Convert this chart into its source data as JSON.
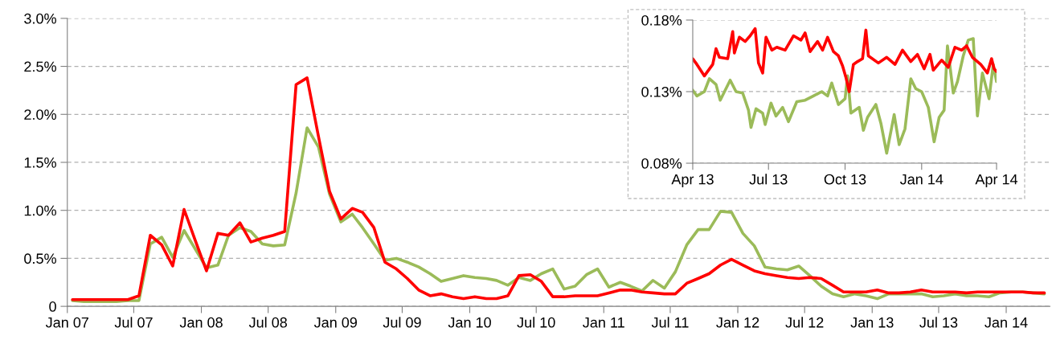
{
  "chart_data": [
    {
      "type": "line",
      "grid": "y",
      "x": [
        "2007-01-15",
        "2007-02-15",
        "2007-03-15",
        "2007-04-15",
        "2007-05-15",
        "2007-06-15",
        "2007-07-15",
        "2007-08-15",
        "2007-09-15",
        "2007-10-15",
        "2007-11-15",
        "2007-12-15",
        "2008-01-15",
        "2008-02-15",
        "2008-03-15",
        "2008-04-15",
        "2008-05-15",
        "2008-06-15",
        "2008-07-15",
        "2008-08-15",
        "2008-09-15",
        "2008-10-15",
        "2008-11-15",
        "2008-12-15",
        "2009-01-15",
        "2009-02-15",
        "2009-03-15",
        "2009-04-15",
        "2009-05-15",
        "2009-06-15",
        "2009-07-15",
        "2009-08-15",
        "2009-09-15",
        "2009-10-15",
        "2009-11-15",
        "2009-12-15",
        "2010-01-15",
        "2010-02-15",
        "2010-03-15",
        "2010-04-15",
        "2010-05-15",
        "2010-06-15",
        "2010-07-15",
        "2010-08-15",
        "2010-09-15",
        "2010-10-15",
        "2010-11-15",
        "2010-12-15",
        "2011-01-15",
        "2011-02-15",
        "2011-03-15",
        "2011-04-15",
        "2011-05-15",
        "2011-06-15",
        "2011-07-15",
        "2011-08-15",
        "2011-09-15",
        "2011-10-15",
        "2011-11-15",
        "2011-12-15",
        "2012-01-15",
        "2012-02-15",
        "2012-03-15",
        "2012-04-15",
        "2012-05-15",
        "2012-06-15",
        "2012-07-15",
        "2012-08-15",
        "2012-09-15",
        "2012-10-15",
        "2012-11-15",
        "2012-12-15",
        "2013-01-15",
        "2013-02-15",
        "2013-03-15",
        "2013-04-15",
        "2013-05-15",
        "2013-06-15",
        "2013-07-15",
        "2013-08-15",
        "2013-09-15",
        "2013-10-15",
        "2013-11-15",
        "2013-12-15",
        "2014-01-15",
        "2014-02-15",
        "2014-03-15",
        "2014-04-15"
      ],
      "series": [
        {
          "color": "#9bbb59",
          "values": [
            0.06,
            0.05,
            0.05,
            0.05,
            0.05,
            0.06,
            0.06,
            0.65,
            0.72,
            0.51,
            0.79,
            0.6,
            0.4,
            0.43,
            0.74,
            0.82,
            0.78,
            0.65,
            0.63,
            0.64,
            1.18,
            1.86,
            1.66,
            1.17,
            0.88,
            0.96,
            0.82,
            0.65,
            0.48,
            0.5,
            0.46,
            0.41,
            0.34,
            0.26,
            0.29,
            0.32,
            0.3,
            0.29,
            0.27,
            0.22,
            0.3,
            0.27,
            0.34,
            0.39,
            0.18,
            0.21,
            0.33,
            0.39,
            0.2,
            0.25,
            0.21,
            0.16,
            0.27,
            0.19,
            0.36,
            0.64,
            0.8,
            0.8,
            0.99,
            0.98,
            0.76,
            0.63,
            0.41,
            0.39,
            0.38,
            0.42,
            0.32,
            0.21,
            0.13,
            0.1,
            0.13,
            0.11,
            0.08,
            0.13,
            0.13,
            0.13,
            0.13,
            0.1,
            0.11,
            0.13,
            0.11,
            0.11,
            0.1,
            0.14,
            0.15,
            0.15,
            0.14,
            0.13
          ]
        },
        {
          "color": "#ff0000",
          "values": [
            0.07,
            0.07,
            0.07,
            0.07,
            0.07,
            0.07,
            0.11,
            0.74,
            0.64,
            0.42,
            1.01,
            0.69,
            0.37,
            0.76,
            0.74,
            0.87,
            0.67,
            0.71,
            0.74,
            0.78,
            2.31,
            2.38,
            1.77,
            1.2,
            0.91,
            1.02,
            0.98,
            0.82,
            0.46,
            0.39,
            0.29,
            0.17,
            0.11,
            0.13,
            0.1,
            0.08,
            0.1,
            0.08,
            0.08,
            0.11,
            0.32,
            0.33,
            0.26,
            0.1,
            0.1,
            0.11,
            0.11,
            0.11,
            0.14,
            0.17,
            0.17,
            0.15,
            0.14,
            0.13,
            0.13,
            0.24,
            0.29,
            0.34,
            0.43,
            0.49,
            0.43,
            0.37,
            0.34,
            0.32,
            0.3,
            0.29,
            0.3,
            0.29,
            0.22,
            0.15,
            0.15,
            0.15,
            0.17,
            0.14,
            0.14,
            0.15,
            0.17,
            0.15,
            0.15,
            0.15,
            0.14,
            0.15,
            0.15,
            0.15,
            0.15,
            0.15,
            0.14,
            0.14
          ]
        }
      ],
      "xlim": [
        "2007-01-01",
        "2014-04-30"
      ],
      "xticks": [
        {
          "value": "2007-01-01",
          "label": "Jan 07"
        },
        {
          "value": "2007-07-01",
          "label": "Jul 07"
        },
        {
          "value": "2008-01-01",
          "label": "Jan 08"
        },
        {
          "value": "2008-07-01",
          "label": "Jul 08"
        },
        {
          "value": "2009-01-01",
          "label": "Jan 09"
        },
        {
          "value": "2009-07-01",
          "label": "Jul 09"
        },
        {
          "value": "2010-01-01",
          "label": "Jan 10"
        },
        {
          "value": "2010-07-01",
          "label": "Jul 10"
        },
        {
          "value": "2011-01-01",
          "label": "Jan 11"
        },
        {
          "value": "2011-07-01",
          "label": "Jul 11"
        },
        {
          "value": "2012-01-01",
          "label": "Jan 12"
        },
        {
          "value": "2012-07-01",
          "label": "Jul 12"
        },
        {
          "value": "2013-01-01",
          "label": "Jan 13"
        },
        {
          "value": "2013-07-01",
          "label": "Jul 13"
        },
        {
          "value": "2014-01-01",
          "label": "Jan 14"
        }
      ],
      "ylim": [
        0,
        3.0
      ],
      "yticks": [
        {
          "value": 0,
          "label": "0"
        },
        {
          "value": 0.5,
          "label": "0.5%"
        },
        {
          "value": 1.0,
          "label": "1.0%"
        },
        {
          "value": 1.5,
          "label": "1.5%"
        },
        {
          "value": 2.0,
          "label": "2.0%"
        },
        {
          "value": 2.5,
          "label": "2.5%"
        },
        {
          "value": 3.0,
          "label": "3.0%"
        }
      ]
    },
    {
      "type": "line",
      "grid": "y",
      "series": [
        {
          "color": "#9bbb59",
          "x": [
            "2013-04-01",
            "2013-04-06",
            "2013-04-15",
            "2013-04-21",
            "2013-04-29",
            "2013-05-04",
            "2013-05-16",
            "2013-05-23",
            "2013-05-31",
            "2013-06-07",
            "2013-06-10",
            "2013-06-16",
            "2013-06-24",
            "2013-06-27",
            "2013-07-04",
            "2013-07-10",
            "2013-07-18",
            "2013-07-25",
            "2013-08-04",
            "2013-08-14",
            "2013-08-24",
            "2013-09-03",
            "2013-09-10",
            "2013-09-15",
            "2013-09-23",
            "2013-10-01",
            "2013-10-04",
            "2013-10-08",
            "2013-10-18",
            "2013-10-23",
            "2013-10-28",
            "2013-11-07",
            "2013-11-13",
            "2013-11-20",
            "2013-11-29",
            "2013-12-05",
            "2013-12-12",
            "2013-12-19",
            "2013-12-25",
            "2014-01-01",
            "2014-01-09",
            "2014-01-16",
            "2014-01-22",
            "2014-01-28",
            "2014-02-01",
            "2014-02-08",
            "2014-02-13",
            "2014-02-20",
            "2014-02-26",
            "2014-03-04",
            "2014-03-09",
            "2014-03-15",
            "2014-03-23",
            "2014-03-28",
            "2014-04-01"
          ],
          "values": [
            0.131,
            0.127,
            0.13,
            0.139,
            0.135,
            0.124,
            0.138,
            0.13,
            0.129,
            0.117,
            0.105,
            0.118,
            0.115,
            0.107,
            0.122,
            0.113,
            0.119,
            0.109,
            0.123,
            0.124,
            0.127,
            0.13,
            0.127,
            0.136,
            0.121,
            0.125,
            0.141,
            0.115,
            0.119,
            0.103,
            0.112,
            0.121,
            0.108,
            0.087,
            0.114,
            0.093,
            0.104,
            0.139,
            0.132,
            0.13,
            0.119,
            0.095,
            0.112,
            0.117,
            0.162,
            0.129,
            0.137,
            0.155,
            0.166,
            0.167,
            0.113,
            0.143,
            0.125,
            0.149,
            0.137
          ]
        },
        {
          "color": "#ff0000",
          "x": [
            "2013-04-01",
            "2013-04-06",
            "2013-04-15",
            "2013-04-25",
            "2013-04-29",
            "2013-05-03",
            "2013-05-13",
            "2013-05-19",
            "2013-05-21",
            "2013-05-27",
            "2013-06-03",
            "2013-06-09",
            "2013-06-15",
            "2013-06-19",
            "2013-06-24",
            "2013-06-28",
            "2013-07-05",
            "2013-07-11",
            "2013-07-21",
            "2013-07-31",
            "2013-08-09",
            "2013-08-14",
            "2013-08-20",
            "2013-08-29",
            "2013-09-04",
            "2013-09-10",
            "2013-09-17",
            "2013-09-23",
            "2013-09-28",
            "2013-10-02",
            "2013-10-06",
            "2013-10-11",
            "2013-10-16",
            "2013-10-22",
            "2013-10-26",
            "2013-10-29",
            "2013-11-10",
            "2013-11-20",
            "2013-11-30",
            "2013-12-09",
            "2013-12-19",
            "2013-12-27",
            "2014-01-04",
            "2014-01-11",
            "2014-01-15",
            "2014-01-25",
            "2014-02-02",
            "2014-02-10",
            "2014-02-18",
            "2014-02-24",
            "2014-03-03",
            "2014-03-13",
            "2014-03-21",
            "2014-03-26",
            "2014-03-29",
            "2014-04-01"
          ],
          "values": [
            0.153,
            0.149,
            0.141,
            0.149,
            0.16,
            0.154,
            0.153,
            0.172,
            0.157,
            0.168,
            0.165,
            0.169,
            0.174,
            0.15,
            0.143,
            0.168,
            0.159,
            0.161,
            0.159,
            0.169,
            0.166,
            0.171,
            0.158,
            0.165,
            0.159,
            0.168,
            0.158,
            0.155,
            0.148,
            0.14,
            0.13,
            0.149,
            0.151,
            0.153,
            0.173,
            0.155,
            0.15,
            0.154,
            0.149,
            0.159,
            0.151,
            0.156,
            0.146,
            0.156,
            0.145,
            0.152,
            0.147,
            0.161,
            0.159,
            0.162,
            0.154,
            0.149,
            0.143,
            0.153,
            0.146,
            0.144
          ]
        }
      ],
      "xlim": [
        "2013-04-01",
        "2014-04-01"
      ],
      "xticks": [
        {
          "value": "2013-04-01",
          "label": "Apr 13"
        },
        {
          "value": "2013-07-01",
          "label": "Jul 13"
        },
        {
          "value": "2013-10-01",
          "label": "Oct 13"
        },
        {
          "value": "2014-01-01",
          "label": "Jan 14"
        },
        {
          "value": "2014-04-01",
          "label": "Apr 14"
        }
      ],
      "ylim": [
        0.08,
        0.18
      ],
      "yticks": [
        {
          "value": 0.08,
          "label": "0.08%"
        },
        {
          "value": 0.13,
          "label": "0.13%"
        },
        {
          "value": 0.18,
          "label": "0.18%"
        }
      ]
    }
  ]
}
